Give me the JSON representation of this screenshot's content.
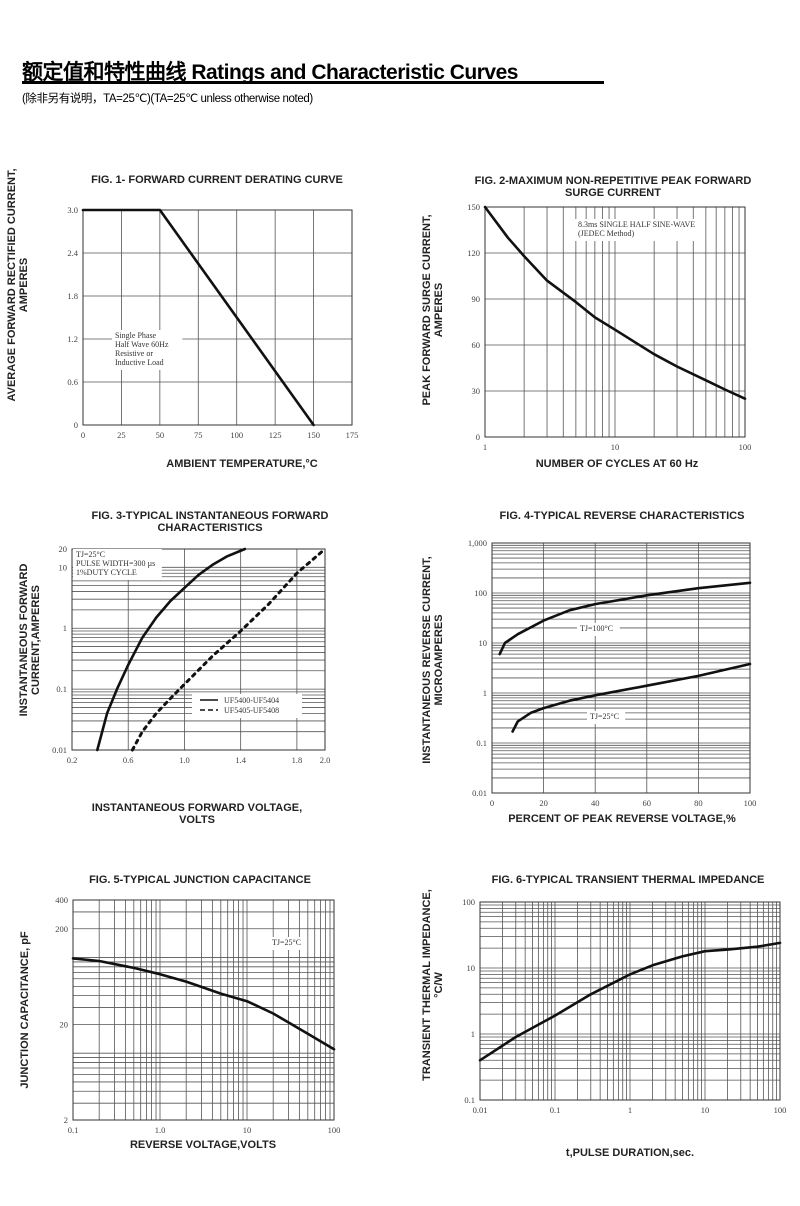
{
  "header": {
    "title": "额定值和特性曲线 Ratings and Characteristic Curves",
    "note": "(除非另有说明，TA=25℃)(TA=25℃  unless otherwise noted)"
  },
  "chart_data": [
    {
      "type": "line",
      "title_lines": [
        "FIG. 1- FORWARD CURRENT DERATING CURVE"
      ],
      "xlabel_lines": [
        "AMBIENT TEMPERATURE,°C"
      ],
      "ylabel_lines": [
        "AVERAGE FORWARD RECTIFIED CURRENT,",
        "AMPERES"
      ],
      "xscale": "linear",
      "yscale": "linear",
      "xlim": [
        0,
        175
      ],
      "ylim": [
        0,
        3.0
      ],
      "xticks": [
        0,
        25,
        50,
        75,
        100,
        125,
        150,
        175
      ],
      "xtick_labels": [
        "0",
        "25",
        "50",
        "75",
        "100",
        "125",
        "150",
        "175"
      ],
      "yticks": [
        0,
        0.6,
        1.2,
        1.8,
        2.4,
        3.0
      ],
      "ytick_labels": [
        "0",
        "0.6",
        "1.2",
        "1.8",
        "2.4",
        "3.0"
      ],
      "grid": true,
      "series": [
        {
          "style": "solid",
          "x": [
            0,
            50,
            150
          ],
          "y": [
            3.0,
            3.0,
            0
          ]
        }
      ],
      "annotations": [
        {
          "lines": [
            "Single Phase",
            "Half Wave 60Hz",
            "Resistive or",
            "Inductive Load"
          ]
        }
      ]
    },
    {
      "type": "line",
      "title_lines": [
        "FIG. 2-MAXIMUM NON-REPETITIVE PEAK FORWARD",
        "SURGE CURRENT"
      ],
      "xlabel_lines": [
        "NUMBER OF CYCLES AT 60 Hz"
      ],
      "ylabel_lines": [
        "PEAK  FORWARD SURGE CURRENT,",
        "AMPERES"
      ],
      "xscale": "log",
      "yscale": "linear",
      "xlim": [
        1,
        100
      ],
      "ylim": [
        0,
        150
      ],
      "xticks": [
        1,
        10,
        100
      ],
      "xtick_labels": [
        "1",
        "10",
        "100"
      ],
      "yticks": [
        0,
        30,
        60,
        90,
        120,
        150
      ],
      "ytick_labels": [
        "0",
        "30",
        "60",
        "90",
        "120",
        "150"
      ],
      "grid": true,
      "series": [
        {
          "style": "solid",
          "x": [
            1,
            1.5,
            2,
            3,
            5,
            7,
            10,
            20,
            30,
            50,
            70,
            100
          ],
          "y": [
            150,
            130,
            118,
            102,
            88,
            78,
            70,
            54,
            46,
            37,
            31,
            25
          ]
        }
      ],
      "annotations": [
        {
          "lines": [
            "8.3ms SINGLE HALF SINE-WAVE",
            "(JEDEC Method)"
          ]
        }
      ]
    },
    {
      "type": "line",
      "title_lines": [
        "FIG. 3-TYPICAL INSTANTANEOUS FORWARD",
        "CHARACTERISTICS"
      ],
      "xlabel_lines": [
        "INSTANTANEOUS FORWARD VOLTAGE,",
        "VOLTS"
      ],
      "ylabel_lines": [
        "INSTANTANEOUS FORWARD",
        "CURRENT,AMPERES"
      ],
      "xscale": "linear",
      "yscale": "log",
      "xlim": [
        0.2,
        2.0
      ],
      "ylim": [
        0.01,
        20
      ],
      "xticks": [
        0.2,
        0.6,
        1.0,
        1.4,
        1.8,
        2.0
      ],
      "xtick_labels": [
        "0.2",
        "0.6",
        "1.0",
        "1.4",
        "1.8",
        "2.0"
      ],
      "yticks": [
        0.01,
        0.1,
        1,
        10,
        20
      ],
      "ytick_labels": [
        "0.01",
        "0.1",
        "1",
        "10",
        "20"
      ],
      "grid": true,
      "series": [
        {
          "name": "UF5400-UF5404",
          "style": "solid",
          "x": [
            0.38,
            0.45,
            0.52,
            0.6,
            0.7,
            0.8,
            0.9,
            1.0,
            1.1,
            1.2,
            1.3,
            1.43
          ],
          "y": [
            0.01,
            0.04,
            0.1,
            0.25,
            0.7,
            1.5,
            2.8,
            4.6,
            7.5,
            11,
            15,
            20
          ]
        },
        {
          "name": "UF5405-UF5408",
          "style": "dashed",
          "x": [
            0.63,
            0.7,
            0.8,
            0.9,
            1.0,
            1.2,
            1.4,
            1.6,
            1.8,
            2.0
          ],
          "y": [
            0.01,
            0.02,
            0.04,
            0.07,
            0.12,
            0.35,
            0.9,
            2.5,
            8,
            20
          ]
        }
      ],
      "legend": {
        "placement": "bottom-right"
      },
      "annotations": [
        {
          "lines": [
            "TJ=25°C",
            "PULSE WIDTH=300 µs",
            "1%DUTY CYCLE"
          ]
        }
      ]
    },
    {
      "type": "line",
      "title_lines": [
        "FIG. 4-TYPICAL REVERSE CHARACTERISTICS"
      ],
      "xlabel_lines": [
        "PERCENT OF PEAK REVERSE VOLTAGE,%"
      ],
      "ylabel_lines": [
        "INSTANTANEOUS REVERSE CURRENT,",
        "MICROAMPERES"
      ],
      "xscale": "linear",
      "yscale": "log",
      "xlim": [
        0,
        100
      ],
      "ylim": [
        0.01,
        1000
      ],
      "xticks": [
        0,
        20,
        40,
        60,
        80,
        100
      ],
      "xtick_labels": [
        "0",
        "20",
        "40",
        "60",
        "80",
        "100"
      ],
      "yticks": [
        0.01,
        0.1,
        1,
        10,
        100,
        1000
      ],
      "ytick_labels": [
        "0.01",
        "0.1",
        "1",
        "10",
        "100",
        "1,000"
      ],
      "grid": true,
      "series": [
        {
          "style": "solid",
          "x": [
            3,
            5,
            10,
            20,
            30,
            40,
            60,
            80,
            100
          ],
          "y": [
            6,
            10,
            15,
            28,
            45,
            60,
            90,
            125,
            160
          ]
        },
        {
          "style": "solid",
          "x": [
            8,
            10,
            15,
            20,
            30,
            40,
            60,
            80,
            100
          ],
          "y": [
            0.17,
            0.27,
            0.4,
            0.5,
            0.7,
            0.9,
            1.4,
            2.2,
            3.8
          ]
        }
      ],
      "annotations": [
        {
          "lines": [
            "TJ=100°C"
          ]
        },
        {
          "lines": [
            "TJ=25°C"
          ]
        }
      ]
    },
    {
      "type": "line",
      "title_lines": [
        "FIG. 5-TYPICAL JUNCTION CAPACITANCE"
      ],
      "xlabel_lines": [
        "REVERSE VOLTAGE,VOLTS"
      ],
      "ylabel_lines": [
        "JUNCTION CAPACITANCE, pF"
      ],
      "xscale": "log",
      "yscale": "log",
      "xlim": [
        0.1,
        100
      ],
      "ylim": [
        2,
        400
      ],
      "xticks": [
        0.1,
        1,
        10,
        100
      ],
      "xtick_labels": [
        "0.1",
        "1.0",
        "10",
        "100"
      ],
      "yticks": [
        2,
        20,
        200,
        400
      ],
      "ytick_labels": [
        "2",
        "20",
        "200",
        "400"
      ],
      "grid": true,
      "series": [
        {
          "style": "solid",
          "x": [
            0.1,
            0.2,
            0.5,
            1,
            2,
            5,
            10,
            20,
            50,
            100
          ],
          "y": [
            98,
            92,
            78,
            67,
            56,
            42,
            35,
            26,
            16,
            11
          ]
        }
      ],
      "annotations": [
        {
          "lines": [
            "TJ=25°C"
          ]
        }
      ]
    },
    {
      "type": "line",
      "title_lines": [
        "FIG. 6-TYPICAL TRANSIENT THERMAL IMPEDANCE"
      ],
      "xlabel_lines": [
        "t,PULSE DURATION,sec."
      ],
      "ylabel_lines": [
        "TRANSIENT THERMAL IMPEDANCE,",
        "°C/W"
      ],
      "xscale": "log",
      "yscale": "log",
      "xlim": [
        0.01,
        100
      ],
      "ylim": [
        0.1,
        100
      ],
      "xticks": [
        0.01,
        0.1,
        1,
        10,
        100
      ],
      "xtick_labels": [
        "0.01",
        "0.1",
        "1",
        "10",
        "100"
      ],
      "yticks": [
        0.1,
        1,
        10,
        100
      ],
      "ytick_labels": [
        "0.1",
        "1",
        "10",
        "100"
      ],
      "grid": true,
      "series": [
        {
          "style": "solid",
          "x": [
            0.01,
            0.03,
            0.1,
            0.3,
            1,
            2,
            5,
            10,
            20,
            50,
            100
          ],
          "y": [
            0.4,
            0.9,
            1.9,
            4,
            8,
            11,
            15,
            18,
            19,
            21,
            24
          ]
        }
      ],
      "annotations": []
    }
  ]
}
